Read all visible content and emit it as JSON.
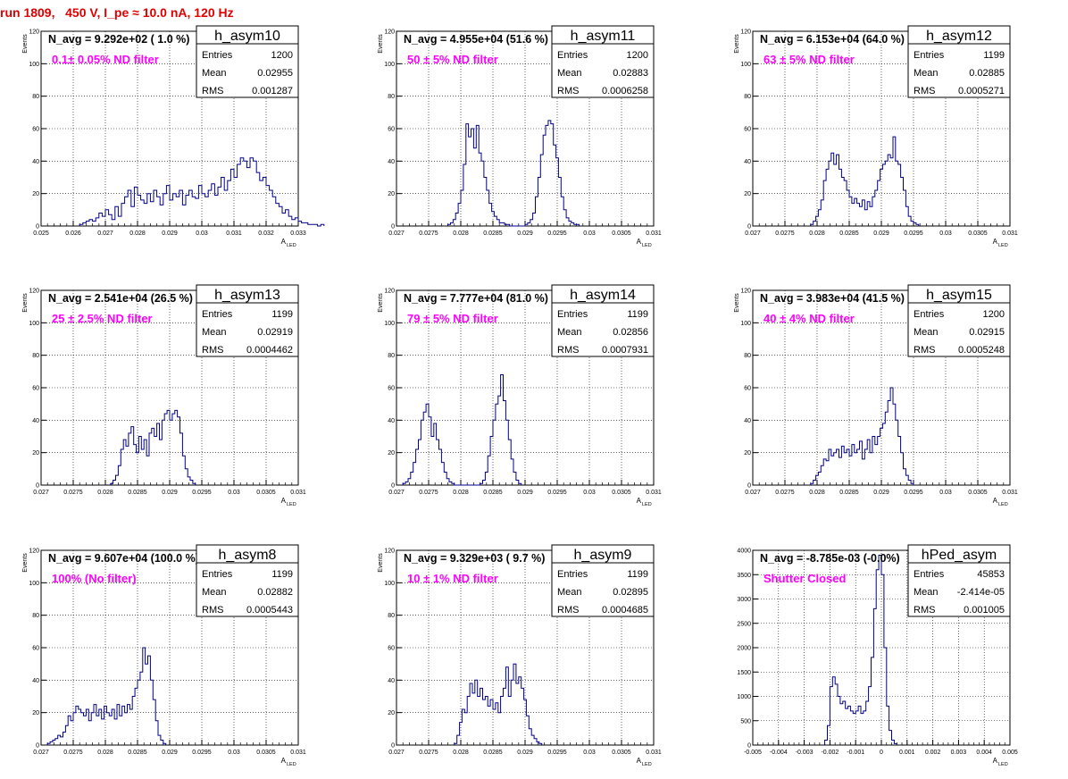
{
  "run_title": "run 1809,   450 V, I_pe ≈ 10.0 nA, 120 Hz",
  "colors": {
    "title": "#e00000",
    "annotation": "#ff00ff",
    "histogram": "#00008b",
    "grid": "#000000"
  },
  "chart_data": [
    {
      "type": "histogram",
      "name": "h_asym10",
      "navg": "N_avg = 9.292e+02 ( 1.0 %)",
      "filter": "0.1± 0.05% ND filter",
      "stats": [
        [
          "Entries",
          "1200"
        ],
        [
          "Mean",
          "0.02955"
        ],
        [
          "RMS",
          "0.001287"
        ]
      ],
      "xlabel": "A",
      "xlabel_sub": "LED",
      "ylabel": "Events",
      "xlim": [
        0.025,
        0.033
      ],
      "ylim": [
        0,
        120
      ],
      "xticks": [
        "0.025",
        "0.026",
        "0.027",
        "0.028",
        "0.029",
        "0.03",
        "0.031",
        "0.032",
        "0.033"
      ],
      "yticks": [
        "0",
        "20",
        "40",
        "60",
        "80",
        "100",
        "120"
      ],
      "bin_start": 0.0262,
      "bin_width": 0.0001,
      "values": [
        1,
        2,
        3,
        4,
        3,
        5,
        8,
        6,
        10,
        7,
        4,
        12,
        6,
        14,
        18,
        22,
        12,
        24,
        19,
        16,
        14,
        20,
        15,
        22,
        18,
        13,
        20,
        25,
        16,
        20,
        18,
        22,
        13,
        19,
        22,
        18,
        17,
        25,
        20,
        18,
        22,
        26,
        19,
        24,
        30,
        22,
        28,
        35,
        30,
        38,
        42,
        40,
        36,
        42,
        40,
        33,
        28,
        30,
        25,
        22,
        18,
        14,
        12,
        8,
        10,
        6,
        4,
        5,
        3,
        2,
        2,
        1,
        1,
        1,
        0,
        1
      ]
    },
    {
      "type": "histogram",
      "name": "h_asym11",
      "navg": "N_avg = 4.955e+04 (51.6 %)",
      "filter": "50 ± 5% ND filter",
      "stats": [
        [
          "Entries",
          "1200"
        ],
        [
          "Mean",
          "0.02883"
        ],
        [
          "RMS",
          "0.0006258"
        ]
      ],
      "xlabel": "A",
      "xlabel_sub": "LED",
      "ylabel": "Events",
      "xlim": [
        0.027,
        0.031
      ],
      "ylim": [
        0,
        120
      ],
      "xticks": [
        "0.027",
        "0.0275",
        "0.028",
        "0.0285",
        "0.029",
        "0.0295",
        "0.03",
        "0.0305",
        "0.031"
      ],
      "yticks": [
        "0",
        "20",
        "40",
        "60",
        "80",
        "100",
        "120"
      ],
      "bin_start": 0.0278,
      "bin_width": 4e-05,
      "values": [
        1,
        2,
        4,
        8,
        14,
        22,
        38,
        63,
        55,
        60,
        48,
        62,
        45,
        40,
        30,
        22,
        14,
        9,
        6,
        4,
        2,
        2,
        1,
        1,
        0,
        0,
        0,
        0,
        0,
        0,
        1,
        2,
        4,
        8,
        18,
        30,
        44,
        56,
        62,
        65,
        63,
        50,
        42,
        30,
        18,
        10,
        5,
        3,
        2,
        1,
        1
      ]
    },
    {
      "type": "histogram",
      "name": "h_asym12",
      "navg": "N_avg = 6.153e+04 (64.0 %)",
      "filter": "63 ± 5% ND filter",
      "stats": [
        [
          "Entries",
          "1199"
        ],
        [
          "Mean",
          "0.02885"
        ],
        [
          "RMS",
          "0.0005271"
        ]
      ],
      "xlabel": "A",
      "xlabel_sub": "LED",
      "ylabel": "Events",
      "xlim": [
        0.027,
        0.031
      ],
      "ylim": [
        0,
        120
      ],
      "xticks": [
        "0.027",
        "0.0275",
        "0.028",
        "0.0285",
        "0.029",
        "0.0295",
        "0.03",
        "0.0305",
        "0.031"
      ],
      "yticks": [
        "0",
        "20",
        "40",
        "60",
        "80",
        "100",
        "120"
      ],
      "bin_start": 0.0279,
      "bin_width": 4e-05,
      "values": [
        1,
        3,
        6,
        10,
        16,
        28,
        35,
        40,
        45,
        38,
        44,
        35,
        30,
        28,
        22,
        18,
        14,
        17,
        14,
        12,
        16,
        10,
        15,
        12,
        18,
        22,
        28,
        35,
        38,
        40,
        44,
        42,
        55,
        40,
        38,
        30,
        22,
        12,
        6,
        3,
        2,
        1
      ]
    },
    {
      "type": "histogram",
      "name": "h_asym13",
      "navg": "N_avg = 2.541e+04 (26.5 %)",
      "filter": "25 ± 2.5% ND filter",
      "stats": [
        [
          "Entries",
          "1199"
        ],
        [
          "Mean",
          "0.02919"
        ],
        [
          "RMS",
          "0.0004462"
        ]
      ],
      "xlabel": "A",
      "xlabel_sub": "LED",
      "ylabel": "Events",
      "xlim": [
        0.027,
        0.031
      ],
      "ylim": [
        0,
        120
      ],
      "xticks": [
        "0.027",
        "0.0275",
        "0.028",
        "0.0285",
        "0.029",
        "0.0295",
        "0.03",
        "0.0305",
        "0.031"
      ],
      "yticks": [
        "0",
        "20",
        "40",
        "60",
        "80",
        "100",
        "120"
      ],
      "bin_start": 0.02808,
      "bin_width": 4e-05,
      "values": [
        1,
        3,
        6,
        12,
        22,
        28,
        24,
        32,
        36,
        25,
        20,
        30,
        22,
        28,
        18,
        32,
        35,
        30,
        38,
        28,
        40,
        44,
        46,
        40,
        44,
        46,
        42,
        32,
        18,
        10,
        5,
        3,
        1
      ]
    },
    {
      "type": "histogram",
      "name": "h_asym14",
      "navg": "N_avg = 7.777e+04 (81.0 %)",
      "filter": "79 ± 5% ND filter",
      "stats": [
        [
          "Entries",
          "1199"
        ],
        [
          "Mean",
          "0.02856"
        ],
        [
          "RMS",
          "0.0007931"
        ]
      ],
      "xlabel": "A",
      "xlabel_sub": "LED",
      "ylabel": "Events",
      "xlim": [
        0.027,
        0.031
      ],
      "ylim": [
        0,
        120
      ],
      "xticks": [
        "0.027",
        "0.0275",
        "0.028",
        "0.0285",
        "0.029",
        "0.0295",
        "0.03",
        "0.0305",
        "0.031"
      ],
      "yticks": [
        "0",
        "20",
        "40",
        "60",
        "80",
        "100",
        "120"
      ],
      "bin_start": 0.0271,
      "bin_width": 4e-05,
      "values": [
        1,
        2,
        4,
        8,
        14,
        22,
        28,
        40,
        45,
        50,
        42,
        30,
        38,
        28,
        22,
        14,
        8,
        4,
        2,
        1,
        0,
        0,
        0,
        0,
        0,
        0,
        0,
        0,
        0,
        0,
        1,
        3,
        8,
        18,
        30,
        40,
        50,
        55,
        68,
        52,
        40,
        28,
        16,
        8,
        3,
        1
      ]
    },
    {
      "type": "histogram",
      "name": "h_asym15",
      "navg": "N_avg = 3.983e+04 (41.5 %)",
      "filter": "40 ± 4% ND filter",
      "stats": [
        [
          "Entries",
          "1200"
        ],
        [
          "Mean",
          "0.02915"
        ],
        [
          "RMS",
          "0.0005248"
        ]
      ],
      "xlabel": "A",
      "xlabel_sub": "LED",
      "ylabel": "Events",
      "xlim": [
        0.027,
        0.031
      ],
      "ylim": [
        0,
        120
      ],
      "xticks": [
        "0.027",
        "0.0275",
        "0.028",
        "0.0285",
        "0.029",
        "0.0295",
        "0.03",
        "0.0305",
        "0.031"
      ],
      "yticks": [
        "0",
        "20",
        "40",
        "60",
        "80",
        "100",
        "120"
      ],
      "bin_start": 0.0279,
      "bin_width": 4e-05,
      "values": [
        1,
        3,
        6,
        8,
        12,
        16,
        15,
        22,
        18,
        20,
        22,
        17,
        24,
        20,
        22,
        18,
        25,
        20,
        22,
        27,
        16,
        22,
        28,
        20,
        30,
        25,
        30,
        35,
        38,
        45,
        52,
        60,
        50,
        40,
        30,
        20,
        10,
        6,
        3,
        1
      ]
    },
    {
      "type": "histogram",
      "name": "h_asym8",
      "navg": "N_avg = 9.607e+04 (100.0 %)",
      "filter": "100% (No filter)",
      "stats": [
        [
          "Entries",
          "1199"
        ],
        [
          "Mean",
          "0.02882"
        ],
        [
          "RMS",
          "0.0005443"
        ]
      ],
      "xlabel": "A",
      "xlabel_sub": "LED",
      "ylabel": "Events",
      "xlim": [
        0.027,
        0.031
      ],
      "ylim": [
        0,
        120
      ],
      "xticks": [
        "0.027",
        "0.0275",
        "0.028",
        "0.0285",
        "0.029",
        "0.0295",
        "0.03",
        "0.0305",
        "0.031"
      ],
      "yticks": [
        "0",
        "20",
        "40",
        "60",
        "80",
        "100",
        "120"
      ],
      "bin_start": 0.0271,
      "bin_width": 4e-05,
      "values": [
        1,
        2,
        3,
        4,
        6,
        5,
        8,
        12,
        18,
        15,
        20,
        24,
        22,
        20,
        18,
        22,
        15,
        20,
        25,
        18,
        22,
        16,
        24,
        20,
        18,
        22,
        16,
        25,
        18,
        24,
        20,
        25,
        22,
        30,
        35,
        40,
        45,
        60,
        50,
        55,
        40,
        28,
        15,
        6,
        3,
        1
      ]
    },
    {
      "type": "histogram",
      "name": "h_asym9",
      "navg": "N_avg = 9.329e+03 ( 9.7 %)",
      "filter": "10 ± 1% ND filter",
      "stats": [
        [
          "Entries",
          "1199"
        ],
        [
          "Mean",
          "0.02895"
        ],
        [
          "RMS",
          "0.0004685"
        ]
      ],
      "xlabel": "A",
      "xlabel_sub": "LED",
      "ylabel": "Events",
      "xlim": [
        0.027,
        0.031
      ],
      "ylim": [
        0,
        120
      ],
      "xticks": [
        "0.027",
        "0.0275",
        "0.028",
        "0.0285",
        "0.029",
        "0.0295",
        "0.03",
        "0.0305",
        "0.031"
      ],
      "yticks": [
        "0",
        "20",
        "40",
        "60",
        "80",
        "100",
        "120"
      ],
      "bin_start": 0.0279,
      "bin_width": 4e-05,
      "values": [
        1,
        6,
        14,
        22,
        20,
        30,
        38,
        32,
        40,
        30,
        35,
        28,
        30,
        24,
        28,
        22,
        26,
        20,
        30,
        35,
        48,
        30,
        40,
        50,
        38,
        42,
        35,
        28,
        18,
        10,
        6,
        4,
        2,
        1
      ]
    },
    {
      "type": "histogram",
      "name": "hPed_asym",
      "navg": "N_avg = -8.785e-03 (-0.0%)",
      "filter": "Shutter Closed",
      "stats": [
        [
          "Entries",
          "45853"
        ],
        [
          "Mean",
          "-2.414e-05"
        ],
        [
          "RMS",
          "0.001005"
        ]
      ],
      "xlabel": "A",
      "xlabel_sub": "LED",
      "ylabel": "",
      "xlim": [
        -0.005,
        0.005
      ],
      "ylim": [
        0,
        4000
      ],
      "xticks": [
        "-0.005",
        "-0.004",
        "-0.003",
        "-0.002",
        "-0.001",
        "0",
        "0.001",
        "0.002",
        "0.003",
        "0.004",
        "0.005"
      ],
      "yticks": [
        "0",
        "500",
        "1000",
        "1500",
        "2000",
        "2500",
        "3000",
        "3500",
        "4000"
      ],
      "bin_start": -0.0022,
      "bin_width": 0.0001,
      "values": [
        100,
        400,
        1200,
        1400,
        1250,
        1000,
        850,
        900,
        750,
        800,
        700,
        650,
        700,
        800,
        650,
        700,
        900,
        1200,
        1800,
        2800,
        3600,
        3900,
        3500,
        2000,
        800,
        300,
        100,
        30
      ]
    }
  ]
}
